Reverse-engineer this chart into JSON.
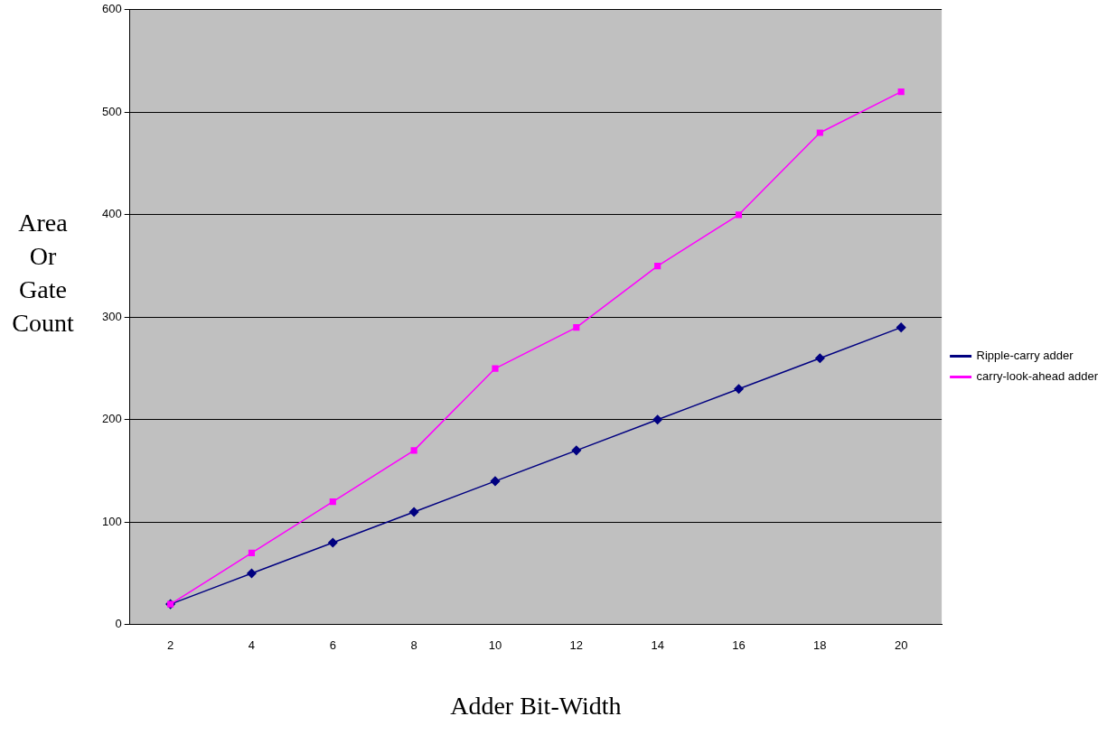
{
  "chart_data": {
    "type": "line",
    "xlabel": "Adder Bit-Width",
    "ylabel": "Area Or Gate Count",
    "categories": [
      "2",
      "4",
      "6",
      "8",
      "10",
      "12",
      "14",
      "16",
      "18",
      "20"
    ],
    "series": [
      {
        "name": "Ripple-carry adder",
        "color": "#000080",
        "marker": "diamond",
        "values": [
          20,
          50,
          80,
          110,
          140,
          170,
          200,
          230,
          260,
          290
        ]
      },
      {
        "name": "carry-look-ahead adder",
        "color": "#ff00ff",
        "marker": "square",
        "values": [
          20,
          70,
          120,
          170,
          250,
          290,
          350,
          400,
          480,
          520
        ]
      }
    ],
    "ylim": [
      0,
      600
    ],
    "yticks": [
      0,
      100,
      200,
      300,
      400,
      500,
      600
    ],
    "grid": "y",
    "legend": "right"
  }
}
